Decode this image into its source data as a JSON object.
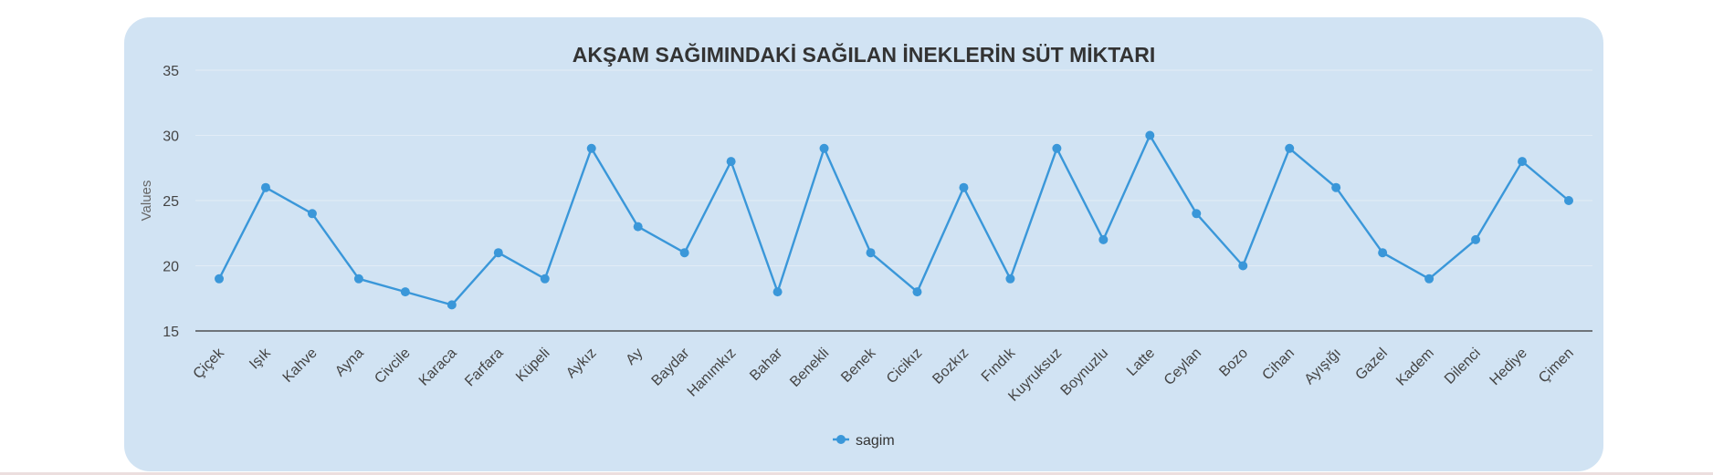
{
  "chart_data": {
    "type": "line",
    "title": "AKŞAM SAĞIMINDAKİ SAĞILAN İNEKLERİN SÜT MİKTARI",
    "ylabel": "Values",
    "xlabel": "",
    "ylim": [
      15,
      35
    ],
    "yticks": [
      15,
      20,
      25,
      30,
      35
    ],
    "grid": true,
    "legend_position": "bottom",
    "categories": [
      "Çiçek",
      "Işık",
      "Kahve",
      "Ayna",
      "Civcile",
      "Karaca",
      "Farfara",
      "Küpeli",
      "Aykız",
      "Ay",
      "Baydar",
      "Hanımkız",
      "Bahar",
      "Benekli",
      "Benek",
      "Cicikız",
      "Bozkız",
      "Fındık",
      "Kuyruksuz",
      "Boynuzlu",
      "Latte",
      "Ceylan",
      "Bozo",
      "Cihan",
      "Ayışığı",
      "Gazel",
      "Kadem",
      "Dilenci",
      "Hediye",
      "Çimen"
    ],
    "series": [
      {
        "name": "sagim",
        "color": "#3a97d9",
        "values": [
          19,
          26,
          24,
          19,
          18,
          17,
          21,
          19,
          29,
          23,
          21,
          28,
          18,
          29,
          21,
          18,
          26,
          19,
          29,
          22,
          30,
          24,
          20,
          29,
          26,
          21,
          19,
          22,
          28,
          25
        ]
      }
    ]
  },
  "colors": {
    "card_background": "#d1e3f3",
    "line": "#3a97d9",
    "axis": "#333333",
    "grid": "#e2ecf6"
  }
}
